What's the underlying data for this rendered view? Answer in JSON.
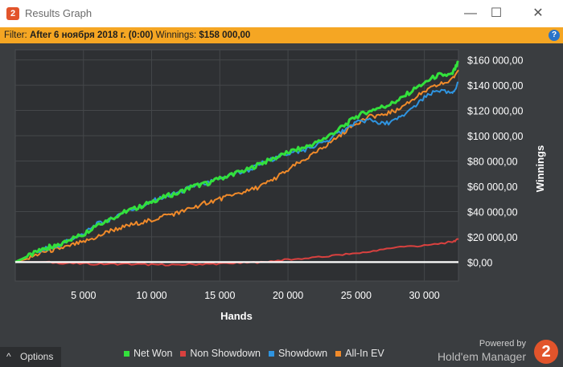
{
  "window": {
    "title": "Results Graph",
    "app_icon_glyph": "2",
    "minimize_glyph": "—",
    "maximize_glyph": "☐",
    "close_glyph": "✕"
  },
  "filter": {
    "label": "Filter:",
    "value": "After 6 ноября 2018 г. (0:00)",
    "winnings_label": "Winnings:",
    "winnings_value": "$158 000,00",
    "help_glyph": "?"
  },
  "chart_data": {
    "type": "line",
    "xlabel": "Hands",
    "ylabel": "Winnings",
    "xlim": [
      0,
      32500
    ],
    "ylim": [
      -15000,
      168000
    ],
    "x_ticks": [
      5000,
      10000,
      15000,
      20000,
      25000,
      30000
    ],
    "x_tick_labels": [
      "5 000",
      "10 000",
      "15 000",
      "20 000",
      "25 000",
      "30 000"
    ],
    "y_ticks": [
      0,
      20000,
      40000,
      60000,
      80000,
      100000,
      120000,
      140000,
      160000
    ],
    "y_tick_labels": [
      "$0,00",
      "$20 000,00",
      "$40 000,00",
      "$60 000,00",
      "$80 000,00",
      "$100 000,00",
      "$120 000,00",
      "$140 000,00",
      "$160 000,00"
    ],
    "grid": true,
    "legend_position": "bottom",
    "series": [
      {
        "name": "Net Won",
        "color": "#33e03c",
        "x": [
          0,
          1000,
          2000,
          2500,
          3000,
          4000,
          5000,
          6000,
          7000,
          8000,
          9000,
          10000,
          11000,
          12000,
          13000,
          14000,
          15000,
          16000,
          17000,
          18000,
          19000,
          20000,
          21000,
          22000,
          23000,
          24000,
          25000,
          26000,
          27000,
          28000,
          29000,
          30000,
          31000,
          32000,
          32500
        ],
        "y": [
          0,
          5000,
          10000,
          12000,
          12000,
          18000,
          22000,
          30000,
          34000,
          40000,
          43000,
          48000,
          52000,
          55000,
          60000,
          62000,
          66000,
          70000,
          73000,
          78000,
          82000,
          87000,
          90000,
          94000,
          100000,
          107000,
          115000,
          120000,
          123000,
          127000,
          135000,
          142000,
          148000,
          148000,
          158000
        ]
      },
      {
        "name": "Non Showdown",
        "color": "#d9413f",
        "x": [
          0,
          2000,
          4000,
          6000,
          8000,
          10000,
          12000,
          14000,
          16000,
          18000,
          20000,
          22000,
          24000,
          26000,
          28000,
          30000,
          32000,
          32500
        ],
        "y": [
          0,
          0,
          -1000,
          -1500,
          -1500,
          -2000,
          -2000,
          -1500,
          -1000,
          0,
          2000,
          3500,
          6000,
          8000,
          12000,
          13000,
          16000,
          18000
        ]
      },
      {
        "name": "Showdown",
        "color": "#2f94e0",
        "x": [
          0,
          1000,
          2000,
          3000,
          4000,
          5000,
          6000,
          7000,
          8000,
          9000,
          10000,
          11000,
          12000,
          13000,
          14000,
          15000,
          16000,
          17000,
          18000,
          19000,
          20000,
          21000,
          22000,
          23000,
          24000,
          25000,
          26000,
          27000,
          28000,
          29000,
          30000,
          31000,
          32000,
          32500
        ],
        "y": [
          0,
          5000,
          10000,
          12000,
          18000,
          22000,
          30000,
          34000,
          40000,
          43000,
          48000,
          52000,
          55000,
          60000,
          62000,
          66000,
          70000,
          72000,
          78000,
          82000,
          86000,
          88000,
          92000,
          97000,
          104000,
          110000,
          113000,
          109000,
          113000,
          120000,
          130000,
          136000,
          133000,
          142000
        ]
      },
      {
        "name": "All-In EV",
        "color": "#f08a2a",
        "x": [
          0,
          1000,
          2000,
          3000,
          4000,
          5000,
          6000,
          7000,
          8000,
          9000,
          10000,
          11000,
          12000,
          13000,
          14000,
          15000,
          16000,
          17000,
          18000,
          19000,
          20000,
          21000,
          22000,
          23000,
          24000,
          25000,
          26000,
          27000,
          28000,
          29000,
          30000,
          31000,
          32000,
          32500
        ],
        "y": [
          0,
          3000,
          8000,
          10000,
          13000,
          16000,
          20000,
          25000,
          28000,
          31000,
          33000,
          37000,
          39000,
          43000,
          47000,
          50000,
          53000,
          56000,
          60000,
          66000,
          73000,
          80000,
          86000,
          94000,
          102000,
          110000,
          115000,
          117000,
          120000,
          128000,
          135000,
          140000,
          144000,
          152000
        ]
      },
      {
        "name": "",
        "color": "#ffffff",
        "x": [
          0,
          32500
        ],
        "y": [
          0,
          0
        ]
      }
    ]
  },
  "legend": {
    "items": [
      {
        "label": "Net Won",
        "color": "#33e03c"
      },
      {
        "label": "Non Showdown",
        "color": "#d9413f"
      },
      {
        "label": "Showdown",
        "color": "#2f94e0"
      },
      {
        "label": "All-In EV",
        "color": "#f08a2a"
      }
    ]
  },
  "footer": {
    "options_label": "Options",
    "options_icon": "^",
    "powered_by": "Powered by",
    "brand": "Hold'em Manager",
    "brand_logo_glyph": "2"
  }
}
